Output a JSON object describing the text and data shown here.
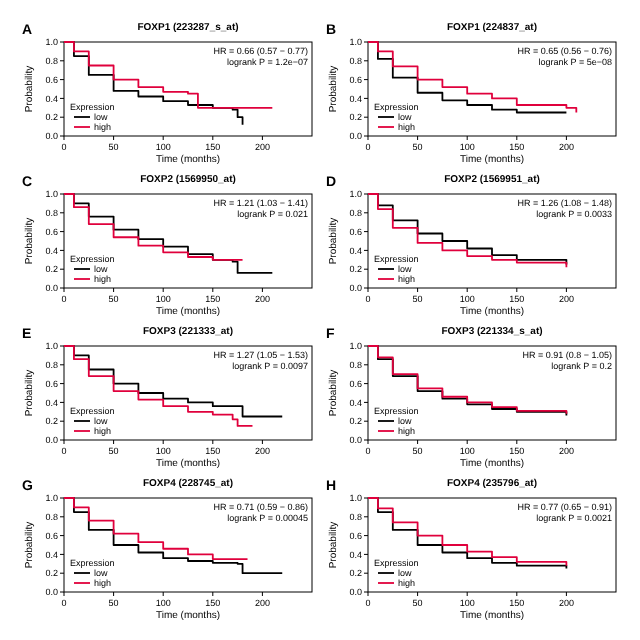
{
  "chart_data": [
    {
      "type": "step",
      "title": "FOXP1 (223287_s_at)",
      "xlabel": "Time (months)",
      "ylabel": "Probability",
      "legend_title": "Expression",
      "legend": "bottom left",
      "annotations": [
        "A",
        "HR = 0.66 (0.57 − 0.77)",
        "logrank P = 1.2e−07"
      ],
      "xlim": [
        0,
        250
      ],
      "xticks": [
        0,
        50,
        100,
        150,
        200
      ],
      "ylim": [
        0,
        1
      ],
      "yticks": [
        {
          "value": 0,
          "label": "0.0"
        },
        {
          "value": 0.2,
          "label": "0.2"
        },
        {
          "value": 0.4,
          "label": "0.4"
        },
        {
          "value": 0.6,
          "label": "0.6"
        },
        {
          "value": 0.8,
          "label": "0.8"
        },
        {
          "value": 1,
          "label": "1.0"
        }
      ],
      "series": [
        {
          "name": "low",
          "color": "#000000",
          "x": [
            0,
            10,
            25,
            50,
            75,
            100,
            125,
            150,
            170,
            175,
            180
          ],
          "values": [
            1,
            0.85,
            0.65,
            0.48,
            0.42,
            0.37,
            0.33,
            0.3,
            0.28,
            0.2,
            0.12
          ]
        },
        {
          "name": "high",
          "color": "#e0003c",
          "x": [
            0,
            10,
            25,
            50,
            75,
            100,
            125,
            135,
            160,
            210
          ],
          "values": [
            1,
            0.9,
            0.75,
            0.6,
            0.52,
            0.47,
            0.45,
            0.3,
            0.3,
            0.3
          ]
        }
      ]
    },
    {
      "type": "step",
      "title": "FOXP1 (224837_at)",
      "xlabel": "Time (months)",
      "ylabel": "Probability",
      "legend_title": "Expression",
      "legend": "bottom left",
      "annotations": [
        "B",
        "HR = 0.65 (0.56 − 0.76)",
        "logrank P = 5e−08"
      ],
      "xlim": [
        0,
        250
      ],
      "xticks": [
        0,
        50,
        100,
        150,
        200
      ],
      "ylim": [
        0,
        1
      ],
      "yticks": [
        {
          "value": 0,
          "label": "0.0"
        },
        {
          "value": 0.2,
          "label": "0.2"
        },
        {
          "value": 0.4,
          "label": "0.4"
        },
        {
          "value": 0.6,
          "label": "0.6"
        },
        {
          "value": 0.8,
          "label": "0.8"
        },
        {
          "value": 1,
          "label": "1.0"
        }
      ],
      "series": [
        {
          "name": "low",
          "color": "#000000",
          "x": [
            0,
            10,
            25,
            50,
            75,
            100,
            125,
            150,
            200
          ],
          "values": [
            1,
            0.82,
            0.62,
            0.46,
            0.38,
            0.33,
            0.28,
            0.25,
            0.25
          ]
        },
        {
          "name": "high",
          "color": "#e0003c",
          "x": [
            0,
            10,
            25,
            50,
            75,
            100,
            125,
            150,
            200,
            210
          ],
          "values": [
            1,
            0.9,
            0.74,
            0.6,
            0.52,
            0.45,
            0.4,
            0.33,
            0.3,
            0.25
          ]
        }
      ]
    },
    {
      "type": "step",
      "title": "FOXP2 (1569950_at)",
      "xlabel": "Time (months)",
      "ylabel": "Probability",
      "legend_title": "Expression",
      "legend": "bottom left",
      "annotations": [
        "C",
        "HR = 1.21 (1.03 − 1.41)",
        "logrank P = 0.021"
      ],
      "xlim": [
        0,
        250
      ],
      "xticks": [
        0,
        50,
        100,
        150,
        200
      ],
      "ylim": [
        0,
        1
      ],
      "yticks": [
        {
          "value": 0,
          "label": "0.0"
        },
        {
          "value": 0.2,
          "label": "0.2"
        },
        {
          "value": 0.4,
          "label": "0.4"
        },
        {
          "value": 0.6,
          "label": "0.6"
        },
        {
          "value": 0.8,
          "label": "0.8"
        },
        {
          "value": 1,
          "label": "1.0"
        }
      ],
      "series": [
        {
          "name": "low",
          "color": "#000000",
          "x": [
            0,
            10,
            25,
            50,
            75,
            100,
            125,
            150,
            170,
            175,
            210
          ],
          "values": [
            1,
            0.9,
            0.76,
            0.62,
            0.52,
            0.44,
            0.36,
            0.3,
            0.28,
            0.16,
            0.16
          ]
        },
        {
          "name": "high",
          "color": "#e0003c",
          "x": [
            0,
            10,
            25,
            50,
            75,
            100,
            125,
            150,
            180
          ],
          "values": [
            1,
            0.86,
            0.68,
            0.54,
            0.45,
            0.38,
            0.33,
            0.3,
            0.3
          ]
        }
      ]
    },
    {
      "type": "step",
      "title": "FOXP2 (1569951_at)",
      "xlabel": "Time (months)",
      "ylabel": "Probability",
      "legend_title": "Expression",
      "legend": "bottom left",
      "annotations": [
        "D",
        "HR = 1.26 (1.08 − 1.48)",
        "logrank P = 0.0033"
      ],
      "xlim": [
        0,
        250
      ],
      "xticks": [
        0,
        50,
        100,
        150,
        200
      ],
      "ylim": [
        0,
        1
      ],
      "yticks": [
        {
          "value": 0,
          "label": "0.0"
        },
        {
          "value": 0.2,
          "label": "0.2"
        },
        {
          "value": 0.4,
          "label": "0.4"
        },
        {
          "value": 0.6,
          "label": "0.6"
        },
        {
          "value": 0.8,
          "label": "0.8"
        },
        {
          "value": 1,
          "label": "1.0"
        }
      ],
      "series": [
        {
          "name": "low",
          "color": "#000000",
          "x": [
            0,
            10,
            25,
            50,
            75,
            100,
            125,
            150,
            200
          ],
          "values": [
            1,
            0.88,
            0.72,
            0.58,
            0.5,
            0.42,
            0.35,
            0.3,
            0.25
          ]
        },
        {
          "name": "high",
          "color": "#e0003c",
          "x": [
            0,
            10,
            25,
            50,
            75,
            100,
            125,
            150,
            200
          ],
          "values": [
            1,
            0.84,
            0.64,
            0.48,
            0.4,
            0.34,
            0.3,
            0.27,
            0.22
          ]
        }
      ]
    },
    {
      "type": "step",
      "title": "FOXP3 (221333_at)",
      "xlabel": "Time (months)",
      "ylabel": "Probability",
      "legend_title": "Expression",
      "legend": "bottom left",
      "annotations": [
        "E",
        "HR = 1.27 (1.05 − 1.53)",
        "logrank P = 0.0097"
      ],
      "xlim": [
        0,
        250
      ],
      "xticks": [
        0,
        50,
        100,
        150,
        200
      ],
      "ylim": [
        0,
        1
      ],
      "yticks": [
        {
          "value": 0,
          "label": "0.0"
        },
        {
          "value": 0.2,
          "label": "0.2"
        },
        {
          "value": 0.4,
          "label": "0.4"
        },
        {
          "value": 0.6,
          "label": "0.6"
        },
        {
          "value": 0.8,
          "label": "0.8"
        },
        {
          "value": 1,
          "label": "1.0"
        }
      ],
      "series": [
        {
          "name": "low",
          "color": "#000000",
          "x": [
            0,
            10,
            25,
            50,
            75,
            100,
            125,
            150,
            175,
            180,
            220
          ],
          "values": [
            1,
            0.9,
            0.75,
            0.6,
            0.5,
            0.44,
            0.4,
            0.36,
            0.36,
            0.25,
            0.25
          ]
        },
        {
          "name": "high",
          "color": "#e0003c",
          "x": [
            0,
            10,
            25,
            50,
            75,
            100,
            125,
            150,
            170,
            175,
            190
          ],
          "values": [
            1,
            0.86,
            0.68,
            0.52,
            0.43,
            0.36,
            0.3,
            0.27,
            0.22,
            0.15,
            0.15
          ]
        }
      ]
    },
    {
      "type": "step",
      "title": "FOXP3 (221334_s_at)",
      "xlabel": "Time (months)",
      "ylabel": "Probability",
      "legend_title": "Expression",
      "legend": "bottom left",
      "annotations": [
        "F",
        "HR = 0.91 (0.8 − 1.05)",
        "logrank P = 0.2"
      ],
      "xlim": [
        0,
        250
      ],
      "xticks": [
        0,
        50,
        100,
        150,
        200
      ],
      "ylim": [
        0,
        1
      ],
      "yticks": [
        {
          "value": 0,
          "label": "0.0"
        },
        {
          "value": 0.2,
          "label": "0.2"
        },
        {
          "value": 0.4,
          "label": "0.4"
        },
        {
          "value": 0.6,
          "label": "0.6"
        },
        {
          "value": 0.8,
          "label": "0.8"
        },
        {
          "value": 1,
          "label": "1.0"
        }
      ],
      "series": [
        {
          "name": "low",
          "color": "#000000",
          "x": [
            0,
            10,
            25,
            50,
            75,
            100,
            125,
            150,
            200
          ],
          "values": [
            1,
            0.86,
            0.68,
            0.52,
            0.44,
            0.38,
            0.33,
            0.3,
            0.26
          ]
        },
        {
          "name": "high",
          "color": "#e0003c",
          "x": [
            0,
            10,
            25,
            50,
            75,
            100,
            125,
            150,
            200
          ],
          "values": [
            1,
            0.88,
            0.7,
            0.55,
            0.46,
            0.4,
            0.35,
            0.31,
            0.28
          ]
        }
      ]
    },
    {
      "type": "step",
      "title": "FOXP4 (228745_at)",
      "xlabel": "Time (months)",
      "ylabel": "Probability",
      "legend_title": "Expression",
      "legend": "bottom left",
      "annotations": [
        "G",
        "HR = 0.71 (0.59 − 0.86)",
        "logrank P = 0.00045"
      ],
      "xlim": [
        0,
        250
      ],
      "xticks": [
        0,
        50,
        100,
        150,
        200
      ],
      "ylim": [
        0,
        1
      ],
      "yticks": [
        {
          "value": 0,
          "label": "0.0"
        },
        {
          "value": 0.2,
          "label": "0.2"
        },
        {
          "value": 0.4,
          "label": "0.4"
        },
        {
          "value": 0.6,
          "label": "0.6"
        },
        {
          "value": 0.8,
          "label": "0.8"
        },
        {
          "value": 1,
          "label": "1.0"
        }
      ],
      "series": [
        {
          "name": "low",
          "color": "#000000",
          "x": [
            0,
            10,
            25,
            50,
            75,
            100,
            125,
            150,
            175,
            180,
            220
          ],
          "values": [
            1,
            0.85,
            0.66,
            0.5,
            0.42,
            0.36,
            0.33,
            0.31,
            0.3,
            0.2,
            0.2
          ]
        },
        {
          "name": "high",
          "color": "#e0003c",
          "x": [
            0,
            10,
            25,
            50,
            75,
            100,
            125,
            150,
            185
          ],
          "values": [
            1,
            0.9,
            0.76,
            0.62,
            0.53,
            0.46,
            0.4,
            0.35,
            0.35
          ]
        }
      ]
    },
    {
      "type": "step",
      "title": "FOXP4 (235796_at)",
      "xlabel": "Time (months)",
      "ylabel": "Probability",
      "legend_title": "Expression",
      "legend": "bottom left",
      "annotations": [
        "H",
        "HR = 0.77 (0.65 − 0.91)",
        "logrank P = 0.0021"
      ],
      "xlim": [
        0,
        250
      ],
      "xticks": [
        0,
        50,
        100,
        150,
        200
      ],
      "ylim": [
        0,
        1
      ],
      "yticks": [
        {
          "value": 0,
          "label": "0.0"
        },
        {
          "value": 0.2,
          "label": "0.2"
        },
        {
          "value": 0.4,
          "label": "0.4"
        },
        {
          "value": 0.6,
          "label": "0.6"
        },
        {
          "value": 0.8,
          "label": "0.8"
        },
        {
          "value": 1,
          "label": "1.0"
        }
      ],
      "series": [
        {
          "name": "low",
          "color": "#000000",
          "x": [
            0,
            10,
            25,
            50,
            75,
            100,
            125,
            150,
            200
          ],
          "values": [
            1,
            0.85,
            0.66,
            0.5,
            0.42,
            0.36,
            0.31,
            0.28,
            0.25
          ]
        },
        {
          "name": "high",
          "color": "#e0003c",
          "x": [
            0,
            10,
            25,
            50,
            75,
            100,
            125,
            150,
            200
          ],
          "values": [
            1,
            0.89,
            0.74,
            0.6,
            0.5,
            0.43,
            0.37,
            0.32,
            0.28
          ]
        }
      ]
    }
  ]
}
